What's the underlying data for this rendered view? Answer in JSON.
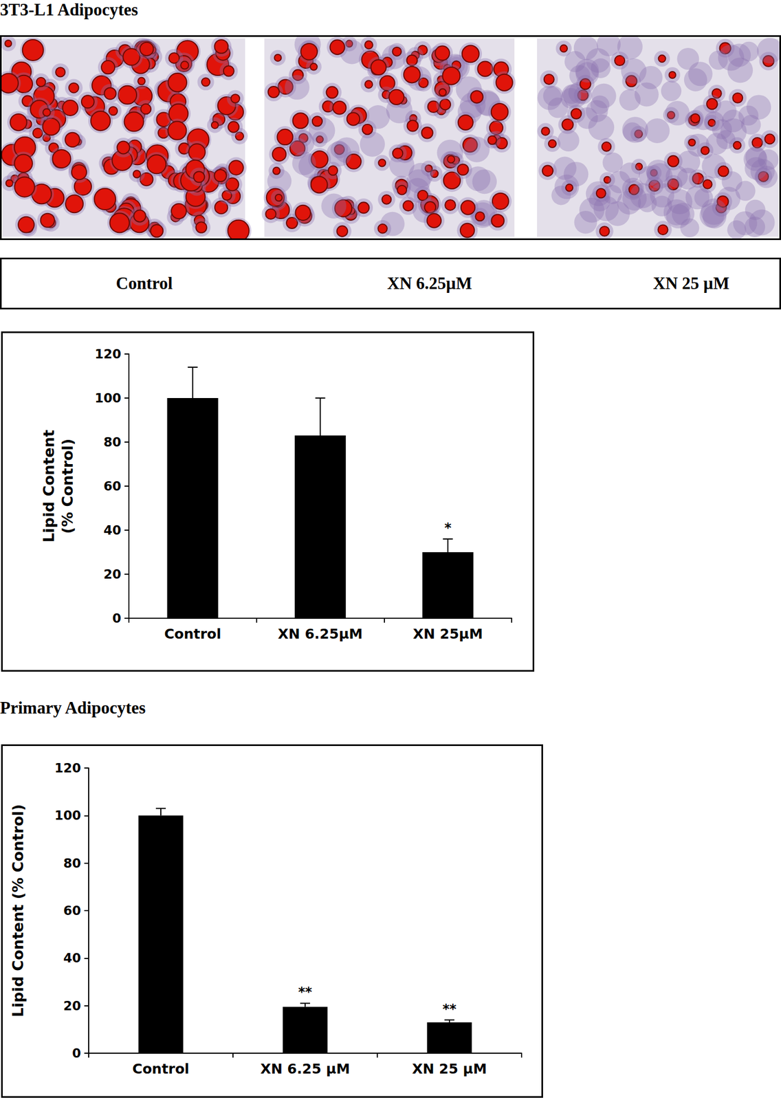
{
  "header": {
    "title": "3T3-L1 Adipocytes"
  },
  "images": {
    "labels": [
      "Control",
      "XN 6.25µM",
      "XN 25 µM"
    ]
  },
  "section": {
    "title": "Primary Adipocytes"
  },
  "chart_data": [
    {
      "type": "bar",
      "ylabel": "Lipid Content\n(% Control)",
      "categories": [
        "Control",
        "XN 6.25µM",
        "XN 25µM"
      ],
      "values": [
        100,
        83,
        30
      ],
      "errors": [
        14,
        17,
        6
      ],
      "significance": [
        null,
        null,
        "*"
      ],
      "color": "#000000",
      "ylim": [
        0,
        120
      ],
      "yticks": [
        0,
        20,
        40,
        60,
        80,
        100,
        120
      ],
      "grid": false
    },
    {
      "type": "bar",
      "ylabel": "Lipid Content (% Control)",
      "categories": [
        "Control",
        "XN 6.25 µM",
        "XN 25 µM"
      ],
      "values": [
        100,
        19.5,
        13
      ],
      "errors": [
        3,
        1.5,
        1
      ],
      "significance": [
        null,
        "**",
        "**"
      ],
      "color": "#000000",
      "ylim": [
        0,
        120
      ],
      "yticks": [
        0,
        20,
        40,
        60,
        80,
        100,
        120
      ],
      "grid": false
    }
  ]
}
